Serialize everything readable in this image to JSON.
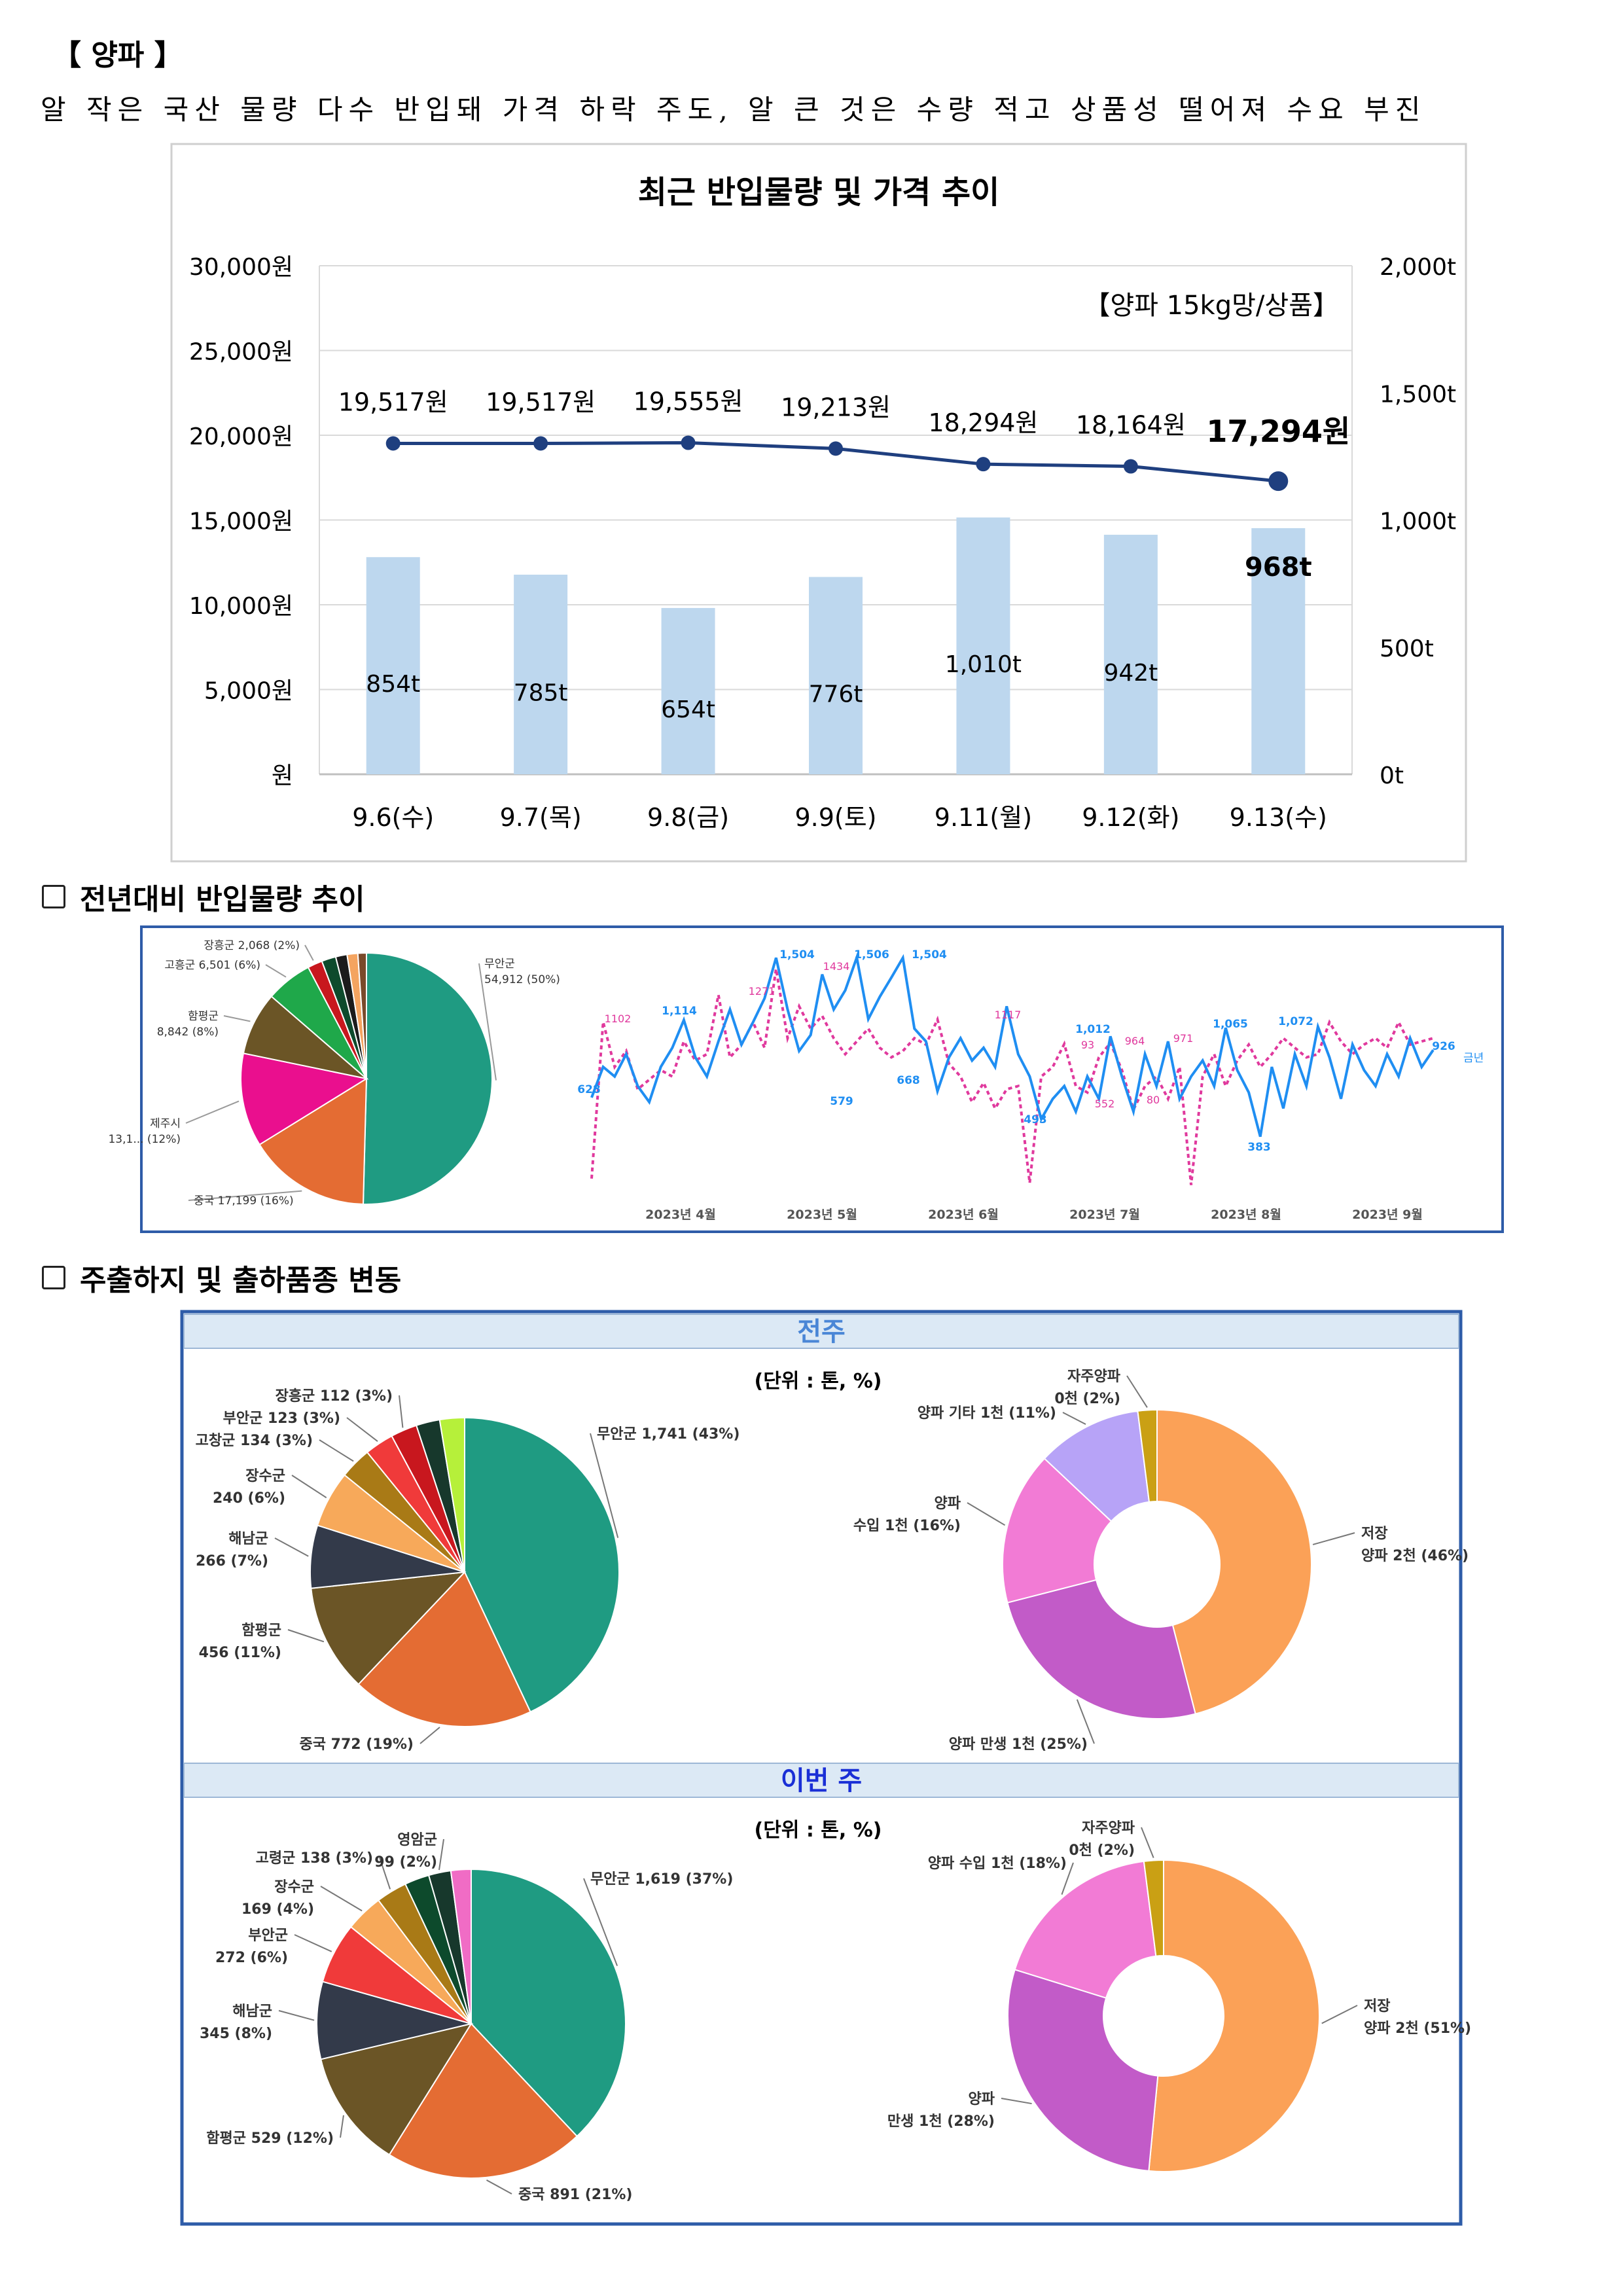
{
  "title": "【 양파 】",
  "subtitle": "알 작은 국산 물량 다수 반입돼 가격 하락 주도, 알 큰 것은 수량 적고 상품성 떨어져 수요 부진",
  "sections": {
    "yoy": "전년대비 반입물량 추이",
    "shipping": "주출하지 및 출하품종 변동"
  },
  "colors": {
    "bar": "#bdd7ee",
    "price_line": "#1f3f7f",
    "frame_blue": "#2e5ca8",
    "current_year": "#1f8ef2",
    "last_year": "#e0399d"
  },
  "chart_data": [
    {
      "id": "main_combo",
      "type": "bar+line",
      "title": "최근 반입물량 및 가격 추이",
      "note": "【양파 15kg망/상품】",
      "categories": [
        "9.6(수)",
        "9.7(목)",
        "9.8(금)",
        "9.9(토)",
        "9.11(월)",
        "9.12(화)",
        "9.13(수)"
      ],
      "volume_values": [
        854,
        785,
        654,
        776,
        1010,
        942,
        968
      ],
      "volume_labels": [
        "854t",
        "785t",
        "654t",
        "776t",
        "1,010t",
        "942t",
        "968t"
      ],
      "price_values": [
        19517,
        19517,
        19555,
        19213,
        18294,
        18164,
        17294
      ],
      "price_labels": [
        "19,517원",
        "19,517원",
        "19,555원",
        "19,213원",
        "18,294원",
        "18,164원",
        "17,294원"
      ],
      "left_axis": {
        "ylim": [
          0,
          30000
        ],
        "ticks": [
          "원",
          "5,000원",
          "10,000원",
          "15,000원",
          "20,000원",
          "25,000원",
          "30,000원"
        ]
      },
      "right_axis": {
        "ylim": [
          0,
          2000
        ],
        "ticks": [
          "0t",
          "500t",
          "1,000t",
          "1,500t",
          "2,000t"
        ]
      },
      "grid": true
    },
    {
      "id": "yoy_pie",
      "type": "pie",
      "slices": [
        {
          "label": "무안군",
          "value_label": "54,912 (50%)",
          "value": 54912,
          "color": "#1f9b82"
        },
        {
          "label": "중국",
          "value_label": "17,199 (16%)",
          "value": 17199,
          "color": "#e46c33"
        },
        {
          "label": "제주시",
          "value_label": "13,1... (12%)",
          "value": 13100,
          "color": "#ea0f8e"
        },
        {
          "label": "함평군",
          "value_label": "8,842 (8%)",
          "value": 8842,
          "color": "#6b5526"
        },
        {
          "label": "고흥군",
          "value_label": "6,501 (6%)",
          "value": 6501,
          "color": "#1fa84a"
        },
        {
          "label": "장흥군",
          "value_label": "2,068 (2%)",
          "value": 2068,
          "color": "#c8171e"
        },
        {
          "label": "",
          "value_label": "",
          "value": 2000,
          "color": "#0d4a2c"
        },
        {
          "label": "",
          "value_label": "",
          "value": 1600,
          "color": "#1b1b1b"
        },
        {
          "label": "",
          "value_label": "",
          "value": 1500,
          "color": "#f4a460"
        },
        {
          "label": "",
          "value_label": "",
          "value": 1200,
          "color": "#7a4a2a"
        }
      ]
    },
    {
      "id": "yoy_line",
      "type": "line",
      "x_labels": [
        "2023년 4월",
        "2023년 5월",
        "2023년 6월",
        "2023년 7월",
        "2023년 8월",
        "2023년 9월"
      ],
      "legend_label": "금년",
      "current_labels": [
        "628",
        "1,114",
        "1,504",
        "1,506",
        "1,504",
        "579",
        "668",
        "493",
        "1,012",
        "1,065",
        "1,072",
        "383",
        "926"
      ],
      "last_labels": [
        "1102",
        "1271",
        "1434",
        "1117",
        "93",
        "964",
        "971",
        "552",
        "80"
      ],
      "series": [
        {
          "name": "금년",
          "values": [
            628,
            820,
            760,
            900,
            700,
            600,
            820,
            940,
            1114,
            880,
            760,
            980,
            1180,
            960,
            1100,
            1250,
            1504,
            1180,
            920,
            1020,
            1400,
            1180,
            1300,
            1506,
            1120,
            1260,
            1380,
            1504,
            1060,
            980,
            668,
            880,
            1000,
            860,
            940,
            820,
            1200,
            900,
            760,
            493,
            620,
            700,
            540,
            760,
            620,
            1012,
            760,
            540,
            900,
            700,
            980,
            620,
            760,
            860,
            700,
            1065,
            800,
            660,
            383,
            820,
            560,
            900,
            700,
            1072,
            880,
            620,
            960,
            800,
            700,
            900,
            760,
            1000,
            820,
            926
          ]
        },
        {
          "name": "",
          "values": [
            120,
            1102,
            820,
            920,
            680,
            740,
            800,
            760,
            980,
            860,
            900,
            1271,
            880,
            960,
            1100,
            940,
            1434,
            1000,
            1200,
            1060,
            1140,
            1000,
            900,
            980,
            1060,
            940,
            880,
            920,
            1000,
            960,
            1117,
            840,
            760,
            600,
            720,
            560,
            680,
            700,
            93,
            760,
            820,
            964,
            700,
            660,
            880,
            971,
            800,
            552,
            700,
            760,
            620,
            820,
            80,
            760,
            900,
            700,
            860,
            960,
            820,
            900,
            1000,
            940,
            880,
            900,
            1100,
            980,
            900,
            960,
            1000,
            940,
            1100,
            960,
            980,
            1000
          ]
        }
      ]
    },
    {
      "id": "lastweek_origin",
      "type": "pie",
      "panel_title": "전주",
      "unit": "(단위 : 톤, %)",
      "slices": [
        {
          "label": "무안군 1,741 (43%)",
          "value": 1741,
          "color": "#1f9b82"
        },
        {
          "label": "중국 772 (19%)",
          "value": 772,
          "color": "#e46c33"
        },
        {
          "label": "함평군 456 (11%)",
          "value": 456,
          "color": "#6b5526"
        },
        {
          "label": "해남군 266 (7%)",
          "value": 266,
          "color": "#333a4a"
        },
        {
          "label": "장수군 240 (6%)",
          "value": 240,
          "color": "#f7a95a"
        },
        {
          "label": "고창군 134 (3%)",
          "value": 134,
          "color": "#a97a16"
        },
        {
          "label": "부안군 123 (3%)",
          "value": 123,
          "color": "#f03a3a"
        },
        {
          "label": "장흥군 112 (3%)",
          "value": 112,
          "color": "#c8171e"
        },
        {
          "label": "",
          "value": 100,
          "color": "#17382c"
        },
        {
          "label": "",
          "value": 105,
          "color": "#b6f03a"
        }
      ]
    },
    {
      "id": "lastweek_variety",
      "type": "pie",
      "donut": true,
      "slices": [
        {
          "label": "저장 양파 2천 (46%)",
          "value": 46,
          "color": "#fba157"
        },
        {
          "label": "양파 만생 1천 (25%)",
          "value": 25,
          "color": "#c25bc8"
        },
        {
          "label": "양파 수입 1천 (16%)",
          "value": 16,
          "color": "#f27bd5"
        },
        {
          "label": "양파 기타 1천 (11%)",
          "value": 11,
          "color": "#b7a3f7"
        },
        {
          "label": "자주양파 0천 (2%)",
          "value": 2,
          "color": "#caa014"
        }
      ]
    },
    {
      "id": "thisweek_origin",
      "type": "pie",
      "panel_title": "이번 주",
      "unit": "(단위 : 톤, %)",
      "slices": [
        {
          "label": "무안군 1,619 (37%)",
          "value": 1619,
          "color": "#1f9b82"
        },
        {
          "label": "중국 891 (21%)",
          "value": 891,
          "color": "#e46c33"
        },
        {
          "label": "함평군 529 (12%)",
          "value": 529,
          "color": "#6b5526"
        },
        {
          "label": "해남군 345 (8%)",
          "value": 345,
          "color": "#333a4a"
        },
        {
          "label": "부안군 272 (6%)",
          "value": 272,
          "color": "#f03a3a"
        },
        {
          "label": "장수군 169 (4%)",
          "value": 169,
          "color": "#f7a95a"
        },
        {
          "label": "고령군 138 (3%)",
          "value": 138,
          "color": "#a97a16"
        },
        {
          "label": "",
          "value": 110,
          "color": "#0d4a2c"
        },
        {
          "label": "영암군 99 (2%)",
          "value": 99,
          "color": "#17382c"
        },
        {
          "label": "",
          "value": 90,
          "color": "#f06cc5"
        }
      ]
    },
    {
      "id": "thisweek_variety",
      "type": "pie",
      "donut": true,
      "slices": [
        {
          "label": "저장 양파 2천 (51%)",
          "value": 51,
          "color": "#fba157"
        },
        {
          "label": "양파 만생 1천 (28%)",
          "value": 28,
          "color": "#c25bc8"
        },
        {
          "label": "양파 수입 1천 (18%)",
          "value": 18,
          "color": "#f27bd5"
        },
        {
          "label": "자주양파 0천 (2%)",
          "value": 2,
          "color": "#caa014"
        }
      ]
    }
  ]
}
